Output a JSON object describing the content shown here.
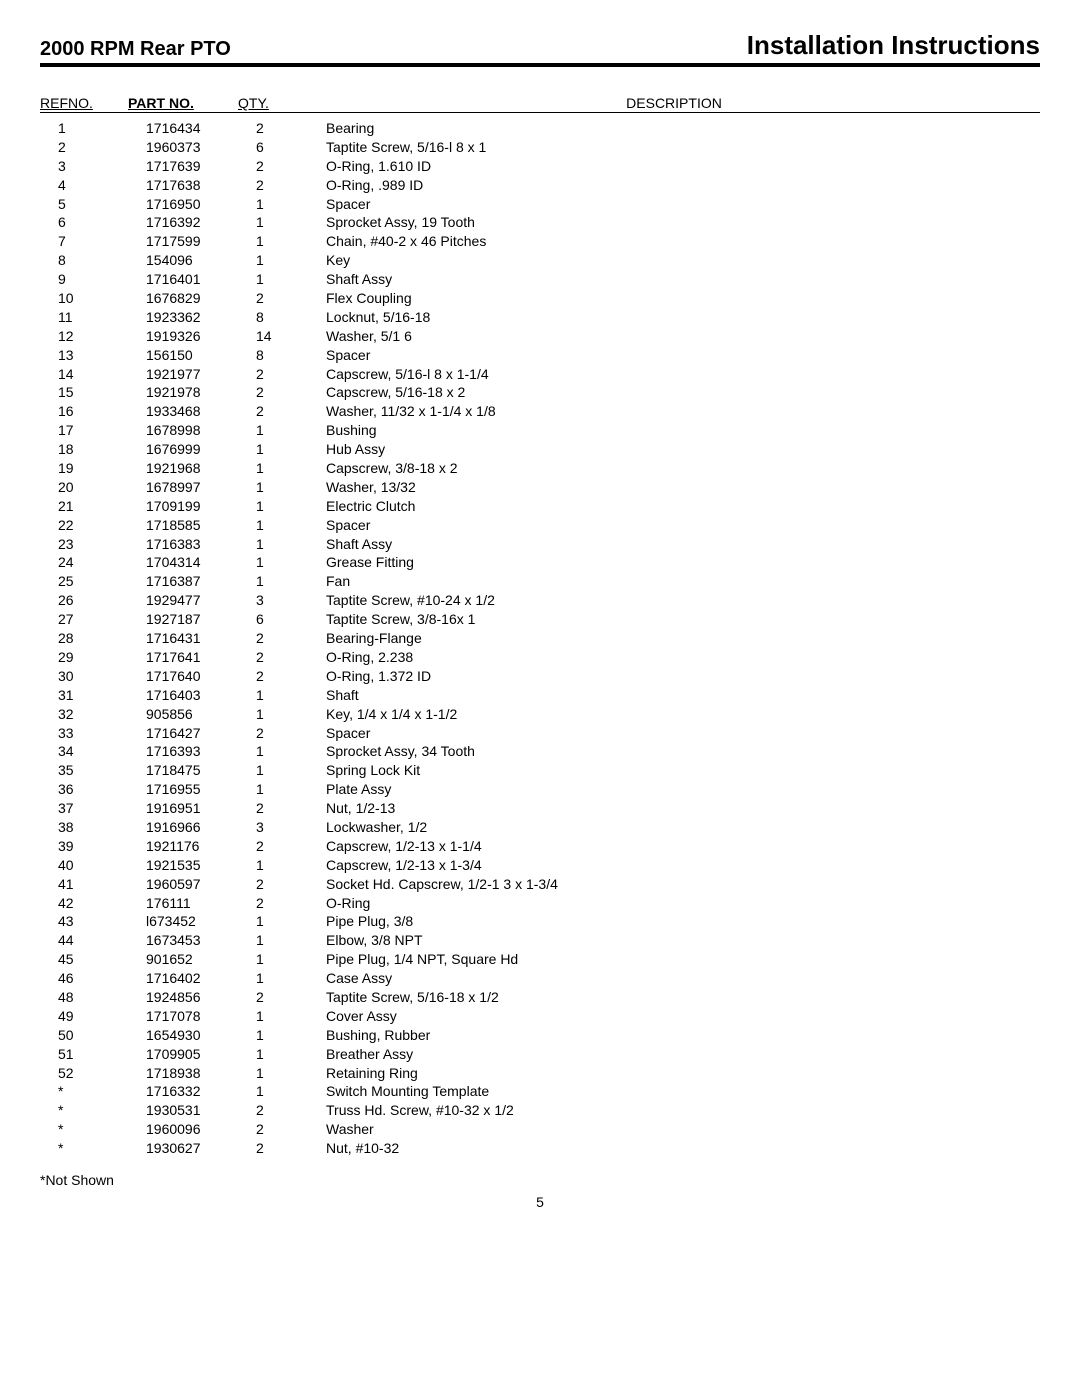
{
  "header": {
    "left": "2000 RPM Rear PTO",
    "right": "Installation Instructions"
  },
  "columns": {
    "ref": "REFNO.",
    "part": "PART NO.",
    "qty": "QTY.",
    "desc": "DESCRIPTION"
  },
  "rows": [
    {
      "ref": "1",
      "part": "1716434",
      "qty": "2",
      "desc": "Bearing"
    },
    {
      "ref": "2",
      "part": "1960373",
      "qty": "6",
      "desc": "Taptite Screw, 5/16-l 8 x 1"
    },
    {
      "ref": "3",
      "part": "1717639",
      "qty": "2",
      "desc": "O-Ring, 1.610 ID"
    },
    {
      "ref": "4",
      "part": "1717638",
      "qty": "2",
      "desc": "O-Ring, .989 ID"
    },
    {
      "ref": "5",
      "part": "1716950",
      "qty": "1",
      "desc": "Spacer"
    },
    {
      "ref": "6",
      "part": "1716392",
      "qty": "1",
      "desc": "Sprocket Assy, 19 Tooth"
    },
    {
      "ref": "7",
      "part": "1717599",
      "qty": "1",
      "desc": "Chain, #40-2 x 46 Pitches"
    },
    {
      "ref": "8",
      "part": "154096",
      "qty": "1",
      "desc": "Key"
    },
    {
      "ref": "9",
      "part": "1716401",
      "qty": "1",
      "desc": "Shaft Assy"
    },
    {
      "ref": "10",
      "part": "1676829",
      "qty": "2",
      "desc": "Flex Coupling"
    },
    {
      "ref": "11",
      "part": "1923362",
      "qty": "8",
      "desc": "Locknut, 5/16-18"
    },
    {
      "ref": "12",
      "part": "1919326",
      "qty": "14",
      "desc": "Washer, 5/1 6"
    },
    {
      "ref": "13",
      "part": "156150",
      "qty": "8",
      "desc": "Spacer"
    },
    {
      "ref": "14",
      "part": "1921977",
      "qty": "2",
      "desc": "Capscrew, 5/16-l 8 x 1-1/4"
    },
    {
      "ref": "15",
      "part": "1921978",
      "qty": "2",
      "desc": "Capscrew, 5/16-18 x 2"
    },
    {
      "ref": "16",
      "part": "1933468",
      "qty": "2",
      "desc": "Washer, 11/32 x 1-1/4 x 1/8"
    },
    {
      "ref": "17",
      "part": "1678998",
      "qty": "1",
      "desc": "Bushing"
    },
    {
      "ref": "18",
      "part": "1676999",
      "qty": "1",
      "desc": "Hub Assy"
    },
    {
      "ref": "19",
      "part": "1921968",
      "qty": "1",
      "desc": "Capscrew, 3/8-18 x 2"
    },
    {
      "ref": "20",
      "part": "1678997",
      "qty": "1",
      "desc": "Washer, 13/32"
    },
    {
      "ref": "21",
      "part": "1709199",
      "qty": "1",
      "desc": "Electric Clutch"
    },
    {
      "ref": "22",
      "part": "1718585",
      "qty": "1",
      "desc": "Spacer"
    },
    {
      "ref": "23",
      "part": "1716383",
      "qty": "1",
      "desc": "Shaft Assy"
    },
    {
      "ref": "24",
      "part": "1704314",
      "qty": "1",
      "desc": "Grease Fitting"
    },
    {
      "ref": "25",
      "part": "1716387",
      "qty": "1",
      "desc": "Fan"
    },
    {
      "ref": "26",
      "part": "1929477",
      "qty": "3",
      "desc": "Taptite Screw, #10-24 x 1/2"
    },
    {
      "ref": "27",
      "part": "1927187",
      "qty": "6",
      "desc": "Taptite Screw, 3/8-16x 1"
    },
    {
      "ref": "28",
      "part": "1716431",
      "qty": "2",
      "desc": "Bearing-Flange"
    },
    {
      "ref": "29",
      "part": "1717641",
      "qty": "2",
      "desc": "O-Ring, 2.238"
    },
    {
      "ref": "30",
      "part": "1717640",
      "qty": "2",
      "desc": "O-Ring, 1.372 ID"
    },
    {
      "ref": "31",
      "part": "1716403",
      "qty": "1",
      "desc": "Shaft"
    },
    {
      "ref": "32",
      "part": "905856",
      "qty": "1",
      "desc": "Key, 1/4 x 1/4 x 1-1/2"
    },
    {
      "ref": "33",
      "part": "1716427",
      "qty": "2",
      "desc": "Spacer"
    },
    {
      "ref": "34",
      "part": "1716393",
      "qty": "1",
      "desc": "Sprocket Assy, 34 Tooth"
    },
    {
      "ref": "35",
      "part": "1718475",
      "qty": "1",
      "desc": "Spring Lock Kit"
    },
    {
      "ref": "36",
      "part": "1716955",
      "qty": "1",
      "desc": "Plate Assy"
    },
    {
      "ref": "37",
      "part": "1916951",
      "qty": "2",
      "desc": "Nut, 1/2-13"
    },
    {
      "ref": "38",
      "part": "1916966",
      "qty": "3",
      "desc": "Lockwasher, 1/2"
    },
    {
      "ref": "39",
      "part": "1921176",
      "qty": "2",
      "desc": "Capscrew, 1/2-13 x 1-1/4"
    },
    {
      "ref": "40",
      "part": "1921535",
      "qty": "1",
      "desc": "Capscrew, 1/2-13 x 1-3/4"
    },
    {
      "ref": "41",
      "part": "1960597",
      "qty": "2",
      "desc": "Socket Hd. Capscrew, 1/2-1 3 x 1-3/4"
    },
    {
      "ref": "42",
      "part": "176111",
      "qty": "2",
      "desc": "O-Ring"
    },
    {
      "ref": "43",
      "part": "l673452",
      "qty": "1",
      "desc": "Pipe Plug, 3/8"
    },
    {
      "ref": "44",
      "part": "1673453",
      "qty": "1",
      "desc": "Elbow, 3/8 NPT"
    },
    {
      "ref": "45",
      "part": "901652",
      "qty": "1",
      "desc": "Pipe Plug, 1/4 NPT, Square Hd"
    },
    {
      "ref": "46",
      "part": "1716402",
      "qty": "1",
      "desc": "Case Assy"
    },
    {
      "ref": "48",
      "part": "1924856",
      "qty": "2",
      "desc": "Taptite Screw, 5/16-18 x 1/2"
    },
    {
      "ref": "49",
      "part": "1717078",
      "qty": "1",
      "desc": "Cover Assy"
    },
    {
      "ref": "50",
      "part": "1654930",
      "qty": "1",
      "desc": "Bushing, Rubber"
    },
    {
      "ref": "51",
      "part": "1709905",
      "qty": "1",
      "desc": "Breather Assy"
    },
    {
      "ref": "52",
      "part": "1718938",
      "qty": "1",
      "desc": "Retaining   Ring"
    },
    {
      "ref": "*",
      "part": "1716332",
      "qty": "1",
      "desc": "Switch Mounting Template"
    },
    {
      "ref": "*",
      "part": "1930531",
      "qty": "2",
      "desc": "Truss Hd. Screw, #10-32 x 1/2"
    },
    {
      "ref": "*",
      "part": "1960096",
      "qty": "2",
      "desc": "Washer"
    },
    {
      "ref": "*",
      "part": "1930627",
      "qty": "2",
      "desc": "Nut, #10-32"
    }
  ],
  "footer": "*Not Shown",
  "pagenum": "5"
}
